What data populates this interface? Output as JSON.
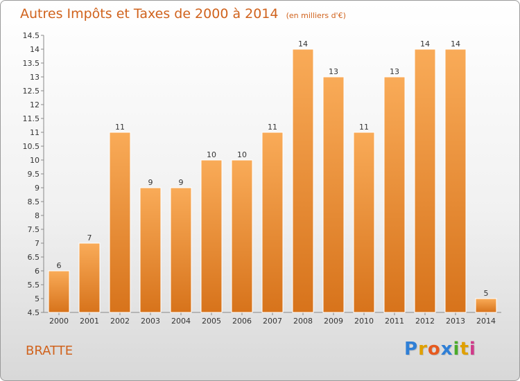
{
  "header": {
    "title": "Autres Impôts et Taxes de 2000 à 2014",
    "unit": "(en milliers d'€)"
  },
  "footer": {
    "location": "BRATTE",
    "brand_letters": [
      "P",
      "r",
      "o",
      "x",
      "i",
      "t",
      "i"
    ],
    "brand_colors": [
      "#2f7fd6",
      "#e0a000",
      "#e65a1e",
      "#2f7fd6",
      "#4aab2a",
      "#e0a000",
      "#d03a8a"
    ]
  },
  "colors": {
    "bar_light": "#f9ab58",
    "bar_dark": "#d7731b",
    "accent_text": "#d0621c"
  },
  "chart_data": {
    "type": "bar",
    "categories": [
      "2000",
      "2001",
      "2002",
      "2003",
      "2004",
      "2005",
      "2006",
      "2007",
      "2008",
      "2009",
      "2010",
      "2011",
      "2012",
      "2013",
      "2014"
    ],
    "values": [
      6,
      7,
      11,
      9,
      9,
      10,
      10,
      11,
      14,
      13,
      11,
      13,
      14,
      14,
      5
    ],
    "ylim": [
      4.5,
      14.5
    ],
    "yticks": [
      "4.5",
      "5",
      "5.5",
      "6",
      "6.5",
      "7",
      "7.5",
      "8",
      "8.5",
      "9",
      "9.5",
      "10",
      "10.5",
      "11",
      "11.5",
      "12",
      "12.5",
      "13",
      "13.5",
      "14",
      "14.5"
    ],
    "grid": false,
    "title": "Autres Impôts et Taxes de 2000 à 2014",
    "xlabel": "",
    "ylabel": ""
  }
}
